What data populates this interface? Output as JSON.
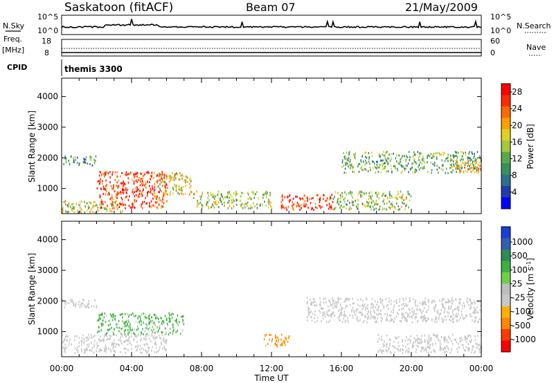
{
  "header": {
    "station": "Saskatoon (fitACF)",
    "beam": "Beam 07",
    "date": "21/May/2009"
  },
  "strip_labels": {
    "nsky": "N.Sky",
    "nsky_ticks": [
      "10^5",
      "10^0"
    ],
    "nsearch": "N.Search",
    "nsearch_ticks": [
      "10^5",
      "10^0"
    ],
    "freq": "Freq.",
    "freq_unit": "[MHz]",
    "freq_ticks": [
      "18",
      "8"
    ],
    "nave": "Nave",
    "nave_ticks": [
      "60",
      "0"
    ],
    "cpid": "CPID",
    "cpid_value": "themis 3300"
  },
  "colors": {
    "power": [
      "#0000ff",
      "#1c3faa",
      "#2e6f8e",
      "#3c8f5a",
      "#5aa84a",
      "#a5c83c",
      "#e0d020",
      "#ff9f00",
      "#ff6a00",
      "#ff2a00",
      "#ff0000"
    ],
    "velocity": [
      "#1a3fd6",
      "#2f5fb3",
      "#2e8b57",
      "#3cb043",
      "#6ed04a",
      "#bebebe",
      "#c8c8c8",
      "#ffb000",
      "#ff8800",
      "#ff3a00",
      "#ff0000"
    ]
  },
  "chart_data": [
    {
      "type": "heatmap",
      "name": "power",
      "title": "",
      "xlabel": "Time UT",
      "ylabel": "Slant Range [km]",
      "xlim": [
        0,
        24
      ],
      "ylim": [
        180,
        4600
      ],
      "x_ticks": [
        "00:00",
        "04:00",
        "08:00",
        "12:00",
        "16:00",
        "20:00",
        "00:00"
      ],
      "y_ticks": [
        "1000",
        "2000",
        "3000",
        "4000"
      ],
      "y_tick_values": [
        1000,
        2000,
        3000,
        4000
      ],
      "colorbar": {
        "label": "Power [dB]",
        "ticks": [
          "4",
          "8",
          "12",
          "16",
          "20",
          "24",
          "28"
        ],
        "tick_values": [
          4,
          8,
          12,
          16,
          20,
          24,
          28
        ],
        "range": [
          0,
          30
        ]
      },
      "regions": [
        {
          "t0": 0.0,
          "t1": 2.0,
          "r0": 1750,
          "r1": 2050,
          "level": 9
        },
        {
          "t0": 0.0,
          "t1": 3.5,
          "r0": 200,
          "r1": 600,
          "level": 16
        },
        {
          "t0": 2.0,
          "t1": 6.0,
          "r0": 350,
          "r1": 1550,
          "level": 27
        },
        {
          "t0": 5.5,
          "t1": 7.5,
          "r0": 800,
          "r1": 1500,
          "level": 18
        },
        {
          "t0": 7.5,
          "t1": 12.0,
          "r0": 350,
          "r1": 900,
          "level": 15
        },
        {
          "t0": 12.5,
          "t1": 15.5,
          "r0": 300,
          "r1": 800,
          "level": 28
        },
        {
          "t0": 15.5,
          "t1": 20.0,
          "r0": 300,
          "r1": 900,
          "level": 14
        },
        {
          "t0": 16.0,
          "t1": 24.0,
          "r0": 1500,
          "r1": 2200,
          "level": 12
        },
        {
          "t0": 22.5,
          "t1": 24.0,
          "r0": 1500,
          "r1": 1900,
          "level": 20
        }
      ]
    },
    {
      "type": "heatmap",
      "name": "velocity",
      "title": "",
      "xlabel": "Time UT",
      "ylabel": "Slant Range [km]",
      "xlim": [
        0,
        24
      ],
      "ylim": [
        180,
        4600
      ],
      "x_ticks": [
        "00:00",
        "04:00",
        "08:00",
        "12:00",
        "16:00",
        "20:00",
        "00:00"
      ],
      "y_ticks": [
        "1000",
        "2000",
        "3000",
        "4000"
      ],
      "y_tick_values": [
        1000,
        2000,
        3000,
        4000
      ],
      "colorbar": {
        "label": "Velocity [m s^-1]",
        "ticks": [
          "1000",
          "500",
          "100",
          "25",
          "-25",
          "-100",
          "-500",
          "-1000"
        ],
        "tick_values": [
          1000,
          500,
          100,
          25,
          -25,
          -100,
          -500,
          -1000
        ]
      },
      "regions": [
        {
          "t0": 0.0,
          "t1": 2.0,
          "r0": 1750,
          "r1": 2050,
          "velocity": 0
        },
        {
          "t0": 0.0,
          "t1": 6.0,
          "r0": 300,
          "r1": 900,
          "velocity": 0
        },
        {
          "t0": 2.0,
          "t1": 7.0,
          "r0": 900,
          "r1": 1600,
          "velocity": 150
        },
        {
          "t0": 11.5,
          "t1": 13.0,
          "r0": 500,
          "r1": 900,
          "velocity": -150
        },
        {
          "t0": 14.0,
          "t1": 24.0,
          "r0": 1300,
          "r1": 2100,
          "velocity": 0
        },
        {
          "t0": 18.0,
          "t1": 24.0,
          "r0": 300,
          "r1": 900,
          "velocity": 0
        }
      ]
    }
  ]
}
